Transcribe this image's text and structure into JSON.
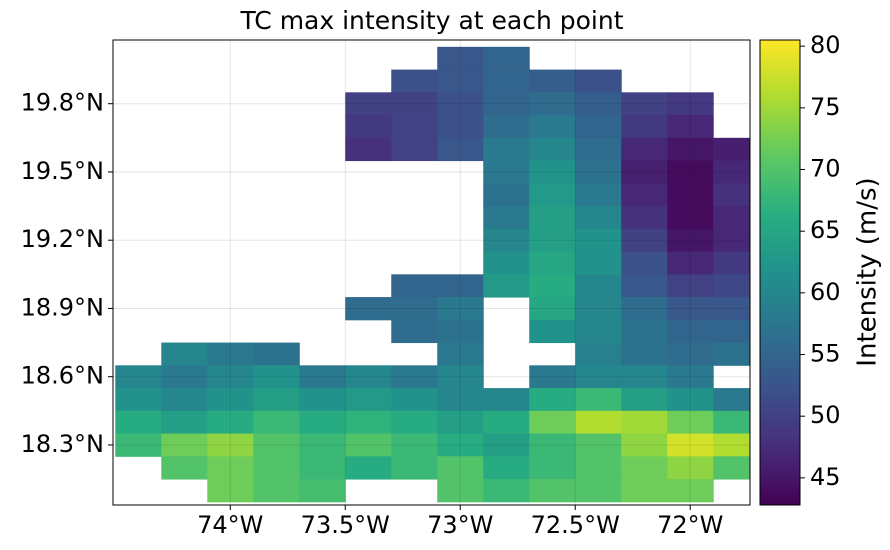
{
  "chart_data": {
    "type": "heatmap",
    "title": "TC max intensity at each point",
    "colorbar_label": "Intensity (m/s)",
    "colormap": "viridis",
    "grid": true,
    "xlim": [
      -74.51,
      -71.74
    ],
    "ylim": [
      18.036,
      20.08
    ],
    "clim": [
      42.8,
      80.5
    ],
    "xticks": [
      {
        "value": -74,
        "label": "74°W"
      },
      {
        "value": -73.5,
        "label": "73.5°W"
      },
      {
        "value": -73,
        "label": "73°W"
      },
      {
        "value": -72.5,
        "label": "72.5°W"
      },
      {
        "value": -72,
        "label": "72°W"
      }
    ],
    "yticks": [
      {
        "value": 18.3,
        "label": "18.3°N"
      },
      {
        "value": 18.6,
        "label": "18.6°N"
      },
      {
        "value": 18.9,
        "label": "18.9°N"
      },
      {
        "value": 19.2,
        "label": "19.2°N"
      },
      {
        "value": 19.5,
        "label": "19.5°N"
      },
      {
        "value": 19.8,
        "label": "19.8°N"
      }
    ],
    "cticks": [
      45,
      50,
      55,
      60,
      65,
      70,
      75,
      80
    ],
    "x": [
      -74.4,
      -74.2,
      -74.0,
      -73.8,
      -73.6,
      -73.4,
      -73.2,
      -73.0,
      -72.8,
      -72.6,
      -72.4,
      -72.2,
      -72.0,
      -71.8
    ],
    "y": [
      20.0,
      19.9,
      19.8,
      19.7,
      19.6,
      19.5,
      19.4,
      19.3,
      19.2,
      19.1,
      19.0,
      18.9,
      18.8,
      18.7,
      18.6,
      18.5,
      18.4,
      18.3,
      18.2,
      18.1
    ],
    "values": [
      [
        null,
        null,
        null,
        null,
        null,
        null,
        null,
        53,
        55,
        null,
        null,
        null,
        null,
        null
      ],
      [
        null,
        null,
        null,
        null,
        null,
        null,
        52,
        53,
        55,
        54,
        52,
        null,
        null,
        null
      ],
      [
        null,
        null,
        null,
        null,
        null,
        50,
        50,
        52,
        55,
        56,
        54,
        50,
        49,
        null
      ],
      [
        null,
        null,
        null,
        null,
        null,
        49,
        50,
        52,
        56,
        58,
        55,
        49,
        47,
        null
      ],
      [
        null,
        null,
        null,
        null,
        null,
        48,
        50,
        53,
        58,
        60,
        56,
        47,
        45,
        46
      ],
      [
        null,
        null,
        null,
        null,
        null,
        null,
        null,
        null,
        58,
        62,
        57,
        46,
        44,
        47
      ],
      [
        null,
        null,
        null,
        null,
        null,
        null,
        null,
        null,
        57,
        63,
        58,
        47,
        44,
        48
      ],
      [
        null,
        null,
        null,
        null,
        null,
        null,
        null,
        null,
        58,
        64,
        60,
        48,
        44,
        47
      ],
      [
        null,
        null,
        null,
        null,
        null,
        null,
        null,
        null,
        60,
        64,
        62,
        50,
        45,
        47
      ],
      [
        null,
        null,
        null,
        null,
        null,
        null,
        null,
        null,
        62,
        65,
        62,
        52,
        47,
        49
      ],
      [
        null,
        null,
        null,
        null,
        null,
        null,
        55,
        55,
        63,
        66,
        60,
        53,
        50,
        51
      ],
      [
        null,
        null,
        null,
        null,
        null,
        56,
        56,
        58,
        null,
        65,
        60,
        56,
        53,
        53
      ],
      [
        null,
        null,
        null,
        null,
        null,
        null,
        56,
        57,
        null,
        62,
        60,
        57,
        55,
        55
      ],
      [
        null,
        60,
        58,
        57,
        null,
        null,
        null,
        58,
        null,
        null,
        59,
        57,
        56,
        57
      ],
      [
        60,
        58,
        60,
        62,
        58,
        60,
        58,
        60,
        null,
        58,
        60,
        60,
        58,
        null
      ],
      [
        62,
        60,
        62,
        64,
        62,
        63,
        62,
        60,
        60,
        66,
        68,
        64,
        62,
        58
      ],
      [
        66,
        64,
        66,
        68,
        66,
        67,
        66,
        64,
        66,
        72,
        76,
        75,
        72,
        68
      ],
      [
        68,
        72,
        74,
        70,
        68,
        70,
        68,
        66,
        64,
        68,
        70,
        74,
        78,
        76
      ],
      [
        null,
        70,
        72,
        70,
        68,
        66,
        68,
        70,
        66,
        68,
        70,
        72,
        74,
        70
      ],
      [
        null,
        null,
        72,
        70,
        69,
        null,
        null,
        70,
        68,
        70,
        70,
        72,
        72,
        null
      ]
    ]
  }
}
